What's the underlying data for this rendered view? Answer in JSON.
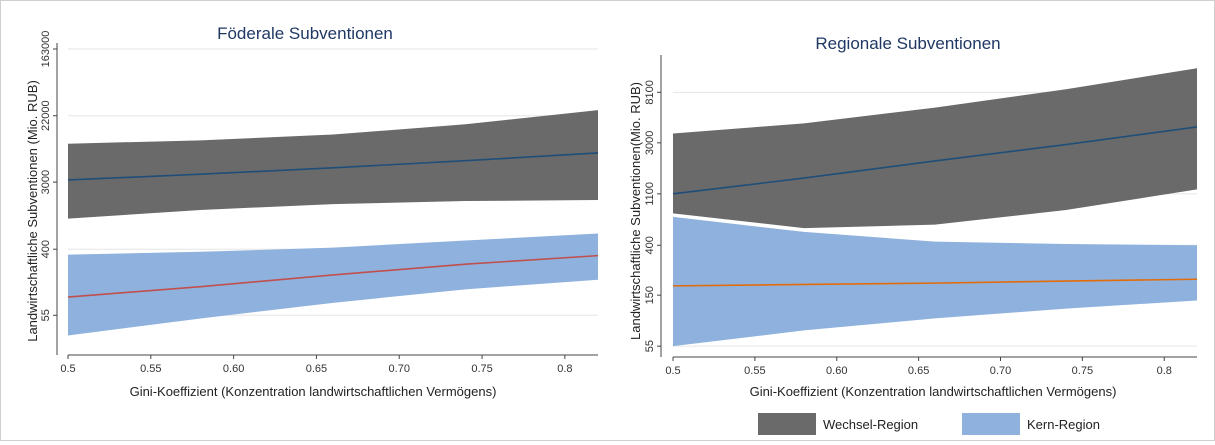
{
  "chart_data": [
    {
      "type": "area",
      "title": "Föderale Subventionen",
      "xlabel": "Gini-Koeffizient (Konzentration landwirtschaftlichen Vermögens)",
      "ylabel": "Landwirtschaftliche Subventionen (Mio. RUB)",
      "yscale": "log",
      "xlim": [
        0.5,
        0.82
      ],
      "ylim": [
        20,
        163000
      ],
      "x_ticks": [
        "0.5",
        "0.55",
        "0.60",
        "0.65",
        "0.70",
        "0.75",
        "0.8"
      ],
      "y_ticks": [
        55,
        400,
        3000,
        22000,
        163000
      ],
      "y_tick_labels": [
        "55",
        "400",
        "3000",
        "22000",
        "163000"
      ],
      "series": [
        {
          "name": "Wechsel-Region",
          "color": "#6a6a6a",
          "line_color": "#1f4e79",
          "x": [
            0.5,
            0.58,
            0.66,
            0.74,
            0.82
          ],
          "lower": [
            1000,
            1300,
            1550,
            1700,
            1750
          ],
          "upper": [
            9500,
            10500,
            12500,
            17000,
            26000
          ],
          "fit": [
            3200,
            3800,
            4600,
            5700,
            7200
          ]
        },
        {
          "name": "Kern-Region",
          "color": "#8eb1de",
          "line_color": "#c0504d",
          "x": [
            0.5,
            0.58,
            0.66,
            0.74,
            0.82
          ],
          "lower": [
            30,
            50,
            80,
            120,
            160
          ],
          "upper": [
            340,
            370,
            420,
            520,
            640
          ],
          "fit": [
            95,
            130,
            185,
            255,
            330
          ]
        }
      ]
    },
    {
      "type": "area",
      "title": "Regionale Subventionen",
      "xlabel": "Gini-Koeffizient (Konzentration landwirtschaftlichen Vermögens)",
      "ylabel": "Landwirtschaftliche Subventionen(Mio. RUB)",
      "yscale": "log",
      "xlim": [
        0.5,
        0.82
      ],
      "ylim": [
        50,
        15000
      ],
      "x_ticks": [
        "0.5",
        "0.55",
        "0.60",
        "0.65",
        "0.70",
        "0.75",
        "0.8"
      ],
      "y_ticks": [
        55,
        150,
        400,
        1100,
        3000,
        8100
      ],
      "y_tick_labels": [
        "55",
        "150",
        "400",
        "1100",
        "3000",
        "8100"
      ],
      "series": [
        {
          "name": "Wechsel-Region",
          "color": "#6a6a6a",
          "line_color": "#1f4e79",
          "x": [
            0.5,
            0.58,
            0.66,
            0.74,
            0.82
          ],
          "lower": [
            750,
            560,
            600,
            800,
            1200
          ],
          "upper": [
            3600,
            4400,
            6000,
            8600,
            13000
          ],
          "fit": [
            1100,
            1500,
            2100,
            2900,
            4100
          ]
        },
        {
          "name": "Kern-Region",
          "color": "#8eb1de",
          "line_color": "#e36c0a",
          "x": [
            0.5,
            0.58,
            0.66,
            0.74,
            0.82
          ],
          "lower": [
            55,
            75,
            95,
            115,
            135
          ],
          "upper": [
            700,
            520,
            430,
            410,
            400
          ],
          "fit": [
            180,
            185,
            190,
            198,
            205
          ]
        }
      ]
    }
  ],
  "legend": {
    "placement": "bottom-right",
    "items": [
      {
        "label": "Wechsel-Region",
        "color": "#6a6a6a"
      },
      {
        "label": "Kern-Region",
        "color": "#8eb1de"
      }
    ]
  }
}
